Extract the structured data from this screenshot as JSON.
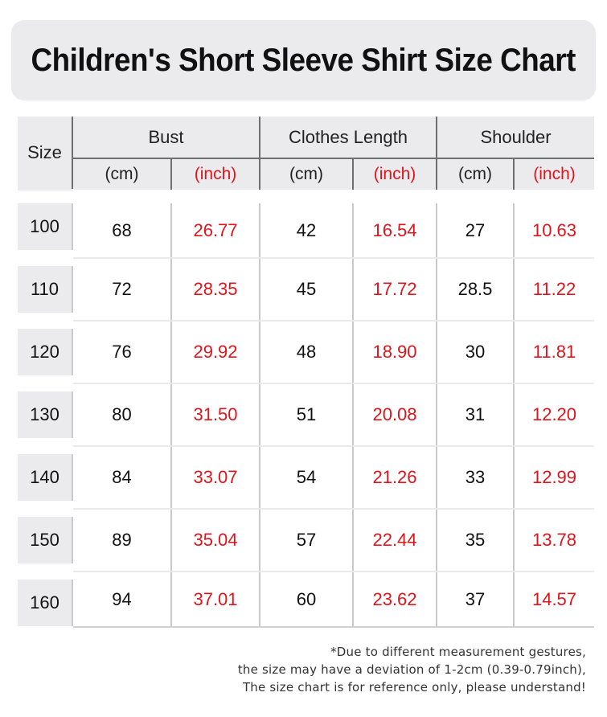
{
  "title": "Children's Short Sleeve Shirt Size Chart",
  "table": {
    "size_header": "Size",
    "groups": [
      "Bust",
      "Clothes Length",
      "Shoulder"
    ],
    "units": {
      "cm": "(cm)",
      "inch": "(inch)"
    },
    "rows": [
      {
        "size": "100",
        "bust_cm": "68",
        "bust_in": "26.77",
        "length_cm": "42",
        "length_in": "16.54",
        "shoulder_cm": "27",
        "shoulder_in": "10.63"
      },
      {
        "size": "110",
        "bust_cm": "72",
        "bust_in": "28.35",
        "length_cm": "45",
        "length_in": "17.72",
        "shoulder_cm": "28.5",
        "shoulder_in": "11.22"
      },
      {
        "size": "120",
        "bust_cm": "76",
        "bust_in": "29.92",
        "length_cm": "48",
        "length_in": "18.90",
        "shoulder_cm": "30",
        "shoulder_in": "11.81"
      },
      {
        "size": "130",
        "bust_cm": "80",
        "bust_in": "31.50",
        "length_cm": "51",
        "length_in": "20.08",
        "shoulder_cm": "31",
        "shoulder_in": "12.20"
      },
      {
        "size": "140",
        "bust_cm": "84",
        "bust_in": "33.07",
        "length_cm": "54",
        "length_in": "21.26",
        "shoulder_cm": "33",
        "shoulder_in": "12.99"
      },
      {
        "size": "150",
        "bust_cm": "89",
        "bust_in": "35.04",
        "length_cm": "57",
        "length_in": "22.44",
        "shoulder_cm": "35",
        "shoulder_in": "13.78"
      },
      {
        "size": "160",
        "bust_cm": "94",
        "bust_in": "37.01",
        "length_cm": "60",
        "length_in": "23.62",
        "shoulder_cm": "37",
        "shoulder_in": "14.57"
      }
    ]
  },
  "note": [
    "*Due to different measurement gestures,",
    "the size may have a deviation of 1-2cm (0.39-0.79inch),",
    "The size chart is for reference only, please understand!"
  ],
  "colors": {
    "inch_text": "#e0141b",
    "header_bg": "#ebebee"
  }
}
